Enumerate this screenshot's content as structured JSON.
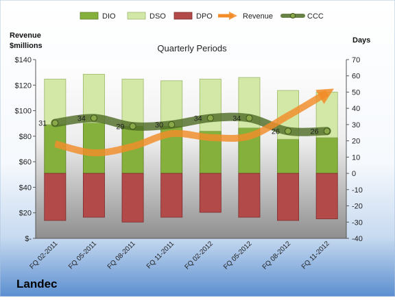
{
  "company": "Landec",
  "chart_data": {
    "type": "bar",
    "title": "Quarterly Periods",
    "left_axis_label": [
      "Revenue",
      "$millions"
    ],
    "right_axis_label": "Days",
    "categories": [
      "FQ 02-2011",
      "FQ 05-2011",
      "FQ 08-2011",
      "FQ 11-2011",
      "FQ 02-2012",
      "FQ 05-2012",
      "FQ 08-2012",
      "FQ 11-2012"
    ],
    "left_axis": {
      "min": 0,
      "max": 140,
      "ticks": [
        0,
        20,
        40,
        60,
        80,
        100,
        120,
        140
      ],
      "tick_labels": [
        "$-",
        "$20",
        "$40",
        "$60",
        "$80",
        "$100",
        "$120",
        "$140"
      ]
    },
    "right_axis": {
      "min": -40,
      "max": 70,
      "ticks": [
        -40,
        -30,
        -20,
        -10,
        0,
        10,
        20,
        30,
        40,
        50,
        60,
        70
      ]
    },
    "series": [
      {
        "name": "DIO",
        "type": "bar",
        "axis": "days",
        "color": "#86b03c",
        "values": [
          30,
          31,
          29,
          29,
          26,
          28,
          21,
          22
        ]
      },
      {
        "name": "DSO",
        "type": "bar-stacked",
        "axis": "days",
        "color": "#d3e7a6",
        "values": [
          28,
          30,
          29,
          28,
          32,
          31,
          30,
          28
        ]
      },
      {
        "name": "DPO",
        "type": "bar-negative",
        "axis": "days",
        "color": "#b24a4a",
        "values": [
          -29,
          -27,
          -30,
          -27,
          -24,
          -27,
          -29,
          -28
        ]
      },
      {
        "name": "Revenue",
        "type": "line",
        "axis": "revenue",
        "color": "#f28c28",
        "values": [
          74,
          67,
          72,
          82,
          79,
          80,
          96,
          114
        ]
      },
      {
        "name": "CCC",
        "type": "line",
        "axis": "days",
        "color": "#4e6b24",
        "values": [
          31,
          34,
          29,
          30,
          34,
          34,
          26,
          26
        ]
      }
    ],
    "data_labels": [
      "31",
      "34",
      "29",
      "30",
      "34",
      "34",
      "26",
      "26"
    ],
    "legend": [
      "DIO",
      "DSO",
      "DPO",
      "Revenue",
      "CCC"
    ],
    "legend_position": "top",
    "grid": false
  }
}
